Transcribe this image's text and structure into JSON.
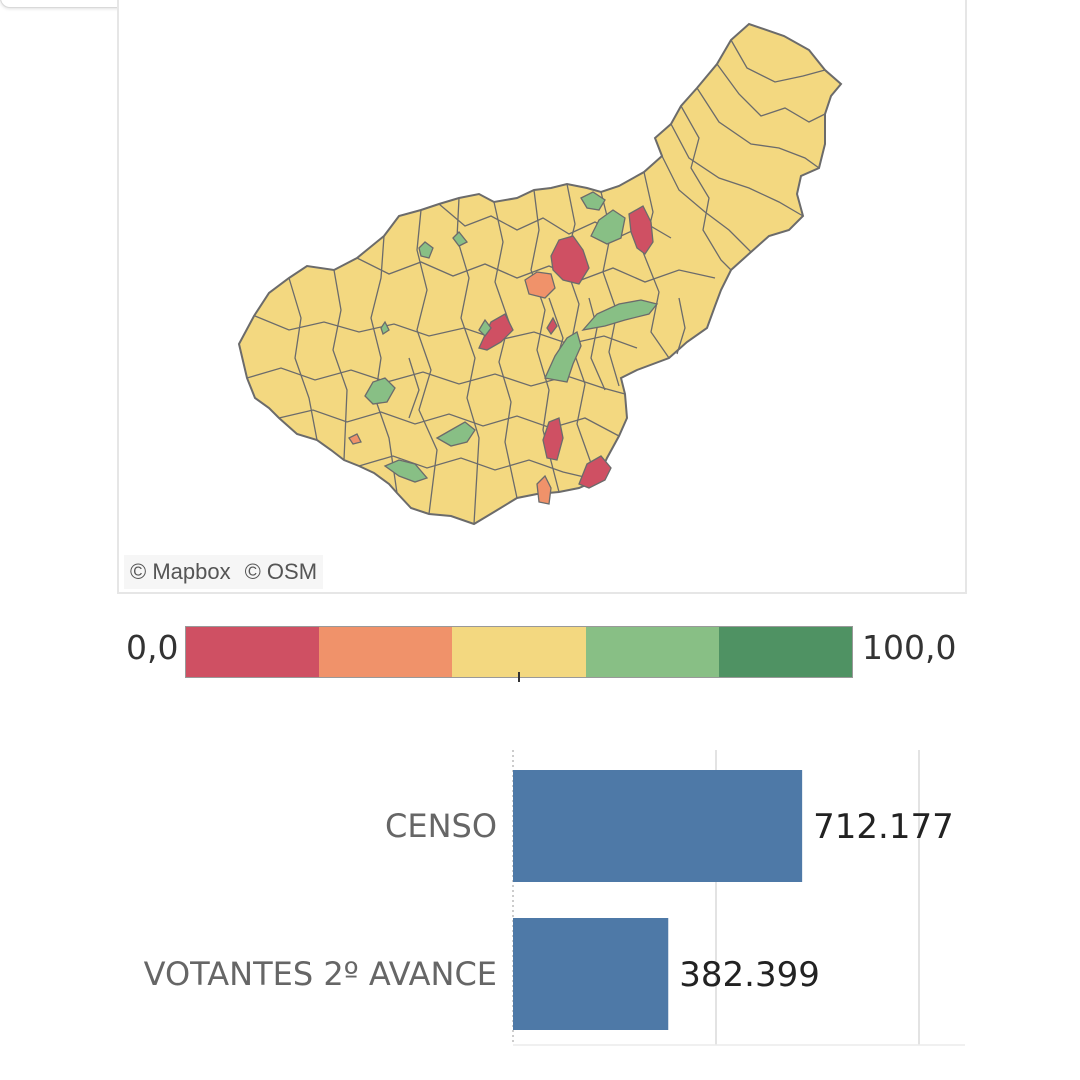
{
  "map": {
    "attribution": [
      "© Mapbox",
      "© OSM"
    ],
    "colors": {
      "border": "#6b6b6b",
      "fill_default": "#f3d880"
    }
  },
  "legend": {
    "min_label": "0,0",
    "max_label": "100,0",
    "colors": [
      "#cf5063",
      "#f0926a",
      "#f3d880",
      "#88bf85",
      "#4f9263"
    ]
  },
  "chart_data": {
    "type": "bar",
    "orientation": "horizontal",
    "categories": [
      "CENSO",
      "VOTANTES 2º AVANCE"
    ],
    "values": [
      712177,
      382399
    ],
    "value_labels": [
      "712.177",
      "382.399"
    ],
    "xlim": [
      0,
      1000000
    ],
    "grid": true,
    "bar_color": "#4e79a7"
  }
}
